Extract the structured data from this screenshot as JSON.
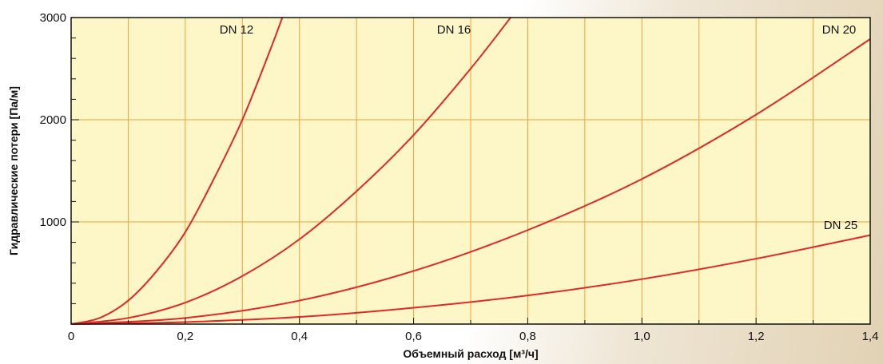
{
  "chart_data": {
    "type": "line",
    "xlabel": "Объемный расход [м³/ч]",
    "ylabel": "Гидравлические потери [Па/м]",
    "xlim": [
      0,
      1.4
    ],
    "ylim": [
      0,
      3000
    ],
    "x_ticks": [
      "0",
      "0,2",
      "0,4",
      "0,6",
      "0,8",
      "1,0",
      "1,2",
      "1,4"
    ],
    "y_ticks": [
      "1000",
      "2000",
      "3000"
    ],
    "grid": true,
    "colors": {
      "plot_bg": "#fdf7c8",
      "grid": "#f0a23a",
      "series": "#e02828",
      "axis": "#111111"
    },
    "series": [
      {
        "name": "DN  12",
        "x": [
          0,
          0.05,
          0.1,
          0.15,
          0.2,
          0.25,
          0.3,
          0.35,
          0.37
        ],
        "y": [
          0,
          60,
          230,
          520,
          900,
          1420,
          2000,
          2700,
          3000
        ]
      },
      {
        "name": "DN  16",
        "x": [
          0,
          0.1,
          0.2,
          0.3,
          0.4,
          0.5,
          0.6,
          0.7,
          0.77
        ],
        "y": [
          0,
          60,
          210,
          470,
          830,
          1300,
          1850,
          2500,
          3000
        ]
      },
      {
        "name": "DN  20",
        "x": [
          0,
          0.2,
          0.4,
          0.6,
          0.8,
          1.0,
          1.2,
          1.4
        ],
        "y": [
          0,
          60,
          230,
          520,
          920,
          1420,
          2050,
          2790
        ]
      },
      {
        "name": "DN  25",
        "x": [
          0,
          0.2,
          0.4,
          0.6,
          0.8,
          1.0,
          1.2,
          1.4
        ],
        "y": [
          0,
          20,
          70,
          160,
          280,
          440,
          640,
          870
        ]
      }
    ]
  }
}
